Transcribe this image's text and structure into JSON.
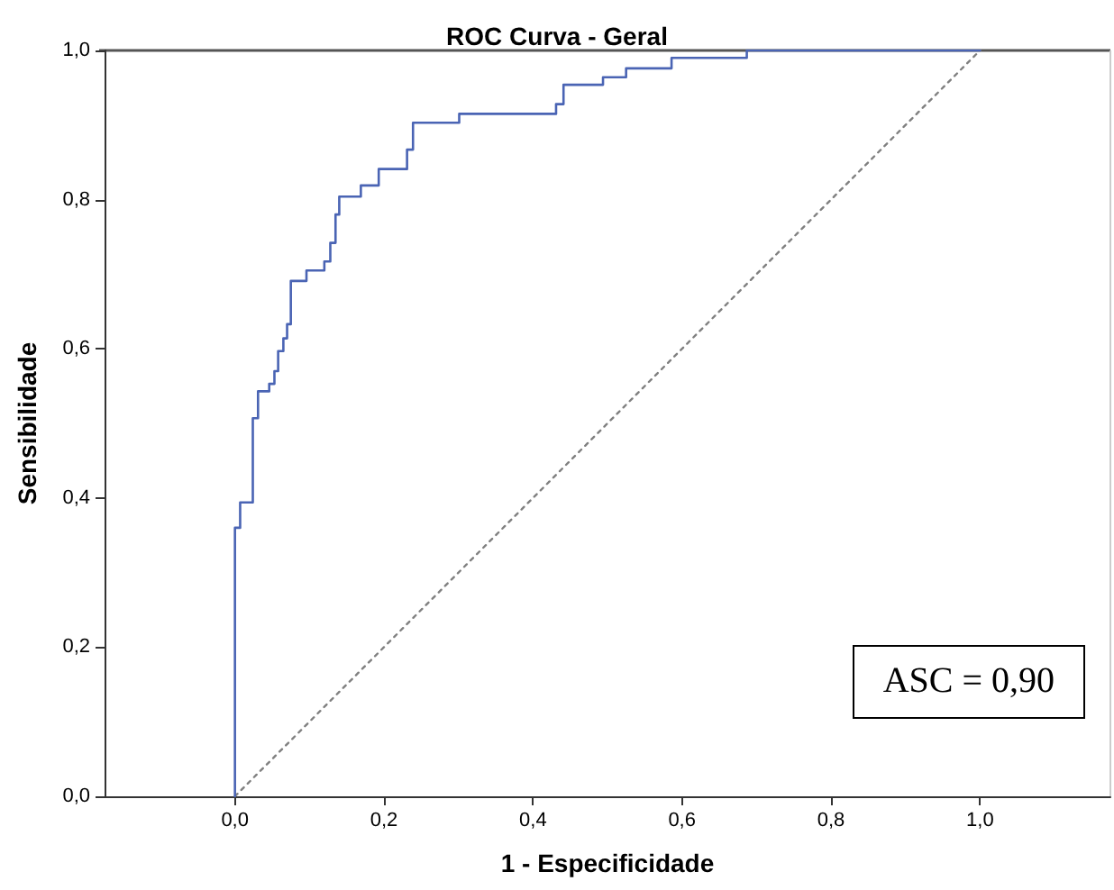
{
  "chart_data": {
    "type": "step",
    "title": "ROC Curva - Geral",
    "xlabel": "1 - Especificidade",
    "ylabel": "Sensibilidade",
    "annotations": [
      "ASC = 0,90"
    ],
    "xlim": [
      -0.175,
      1.175
    ],
    "ylim": [
      0,
      1
    ],
    "xticks": [
      {
        "value": 0,
        "label": "0,0"
      },
      {
        "value": 0.2,
        "label": "0,2"
      },
      {
        "value": 0.4,
        "label": "0,4"
      },
      {
        "value": 0.6,
        "label": "0,6"
      },
      {
        "value": 0.8,
        "label": "0,8"
      },
      {
        "value": 1,
        "label": "1,0"
      }
    ],
    "yticks": [
      {
        "value": 0,
        "label": "0,0"
      },
      {
        "value": 0.2,
        "label": "0,2"
      },
      {
        "value": 0.4,
        "label": "0,4"
      },
      {
        "value": 0.6,
        "label": "0,6"
      },
      {
        "value": 0.8,
        "label": "0,8"
      },
      {
        "value": 1,
        "label": "1,0"
      }
    ],
    "grid": false,
    "marker": "none",
    "series": [
      {
        "color": "#4a64b4",
        "x": [
          0,
          0,
          0.007,
          0.024,
          0.031,
          0.046,
          0.053,
          0.058,
          0.065,
          0.07,
          0.075,
          0.096,
          0.12,
          0.128,
          0.135,
          0.14,
          0.169,
          0.193,
          0.231,
          0.239,
          0.301,
          0.431,
          0.441,
          0.494,
          0.525,
          0.586,
          0.687,
          1
        ],
        "values": [
          0,
          0.36,
          0.394,
          0.507,
          0.543,
          0.553,
          0.57,
          0.597,
          0.614,
          0.633,
          0.691,
          0.705,
          0.717,
          0.742,
          0.78,
          0.804,
          0.819,
          0.841,
          0.867,
          0.903,
          0.915,
          0.928,
          0.954,
          0.964,
          0.976,
          0.99,
          1,
          1
        ]
      },
      {
        "type": "line",
        "color": "#808080",
        "line_style": "dotted",
        "x": [
          0,
          1
        ],
        "values": [
          0,
          1
        ]
      }
    ]
  }
}
